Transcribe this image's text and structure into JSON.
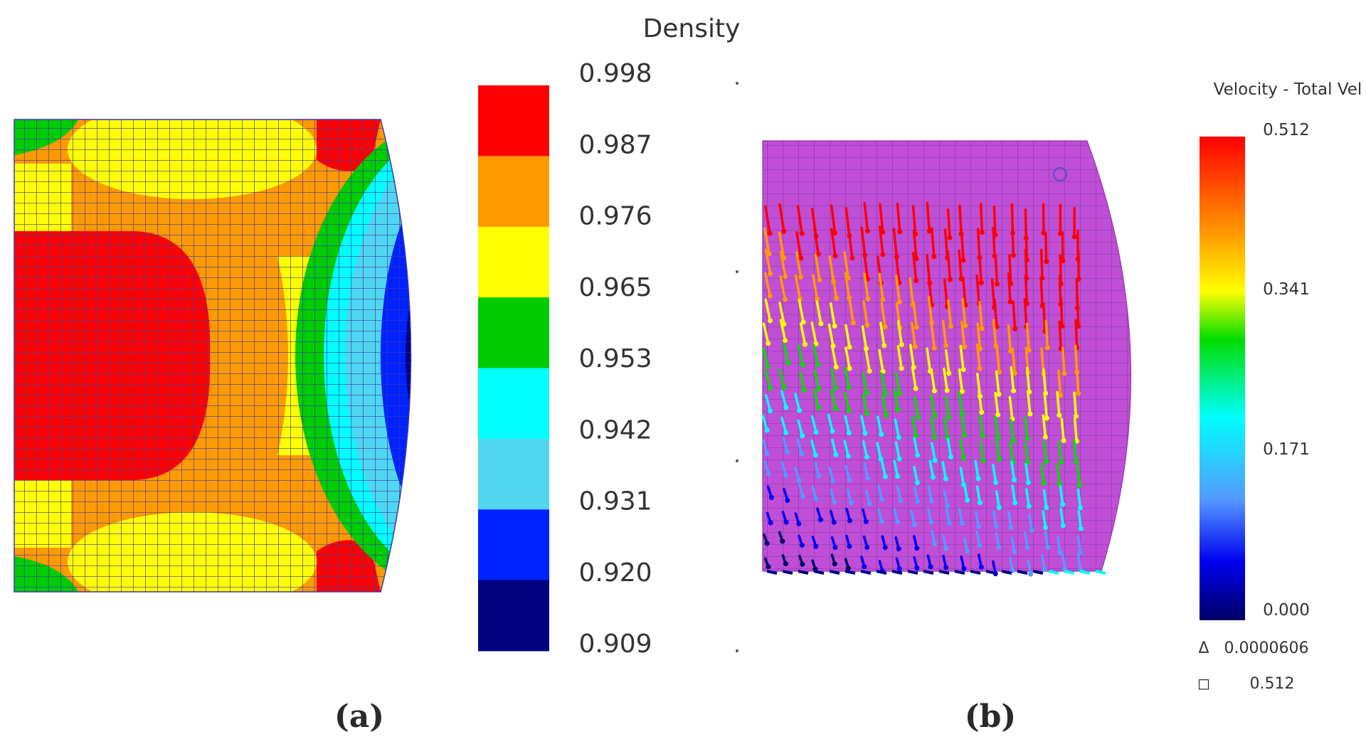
{
  "panel_a": {
    "legend_title": "Density",
    "legend_values": [
      "0.998",
      "0.987",
      "0.976",
      "0.965",
      "0.953",
      "0.942",
      "0.931",
      "0.920",
      "0.909"
    ],
    "legend_colors": [
      "#ff0000",
      "#ff9900",
      "#ffff00",
      "#00cc00",
      "#00ffff",
      "#4fd6f0",
      "#0022ff",
      "#000080"
    ],
    "caption": "(a)"
  },
  "panel_b": {
    "legend_title": "Velocity - Total Vel",
    "legend_values": [
      "0.512",
      "0.341",
      "0.171",
      "0.000"
    ],
    "legend_gradient": [
      "#ff0000",
      "#ff9900",
      "#ffff00",
      "#00dd00",
      "#00ffff",
      "#5599ff",
      "#0000ee",
      "#000066"
    ],
    "min_symbol": "Δ",
    "min_value": "0.0000606",
    "max_symbol": "◻",
    "max_value": "0.512",
    "caption": "(b)"
  },
  "colors": {
    "mesh_line": "#3a3aa8",
    "panel_b_background": "#c04ed6"
  }
}
